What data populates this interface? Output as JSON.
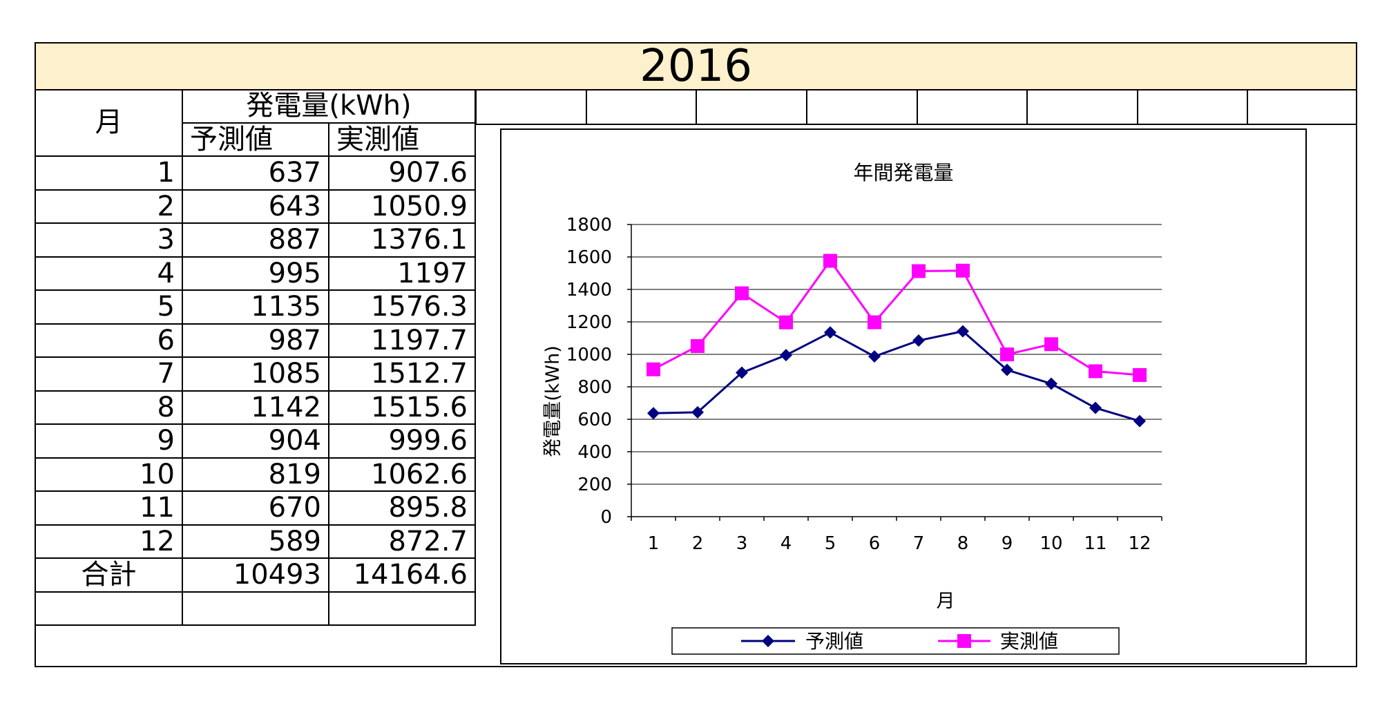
{
  "title": "2016",
  "table": {
    "month_header": "月",
    "energy_header": "発電量(kWh)",
    "predicted_header": "予測値",
    "measured_header": "実測値",
    "rows": [
      {
        "month": "1",
        "predicted": "637",
        "measured": "907.6"
      },
      {
        "month": "2",
        "predicted": "643",
        "measured": "1050.9"
      },
      {
        "month": "3",
        "predicted": "887",
        "measured": "1376.1"
      },
      {
        "month": "4",
        "predicted": "995",
        "measured": "1197"
      },
      {
        "month": "5",
        "predicted": "1135",
        "measured": "1576.3"
      },
      {
        "month": "6",
        "predicted": "987",
        "measured": "1197.7"
      },
      {
        "month": "7",
        "predicted": "1085",
        "measured": "1512.7"
      },
      {
        "month": "8",
        "predicted": "1142",
        "measured": "1515.6"
      },
      {
        "month": "9",
        "predicted": "904",
        "measured": "999.6"
      },
      {
        "month": "10",
        "predicted": "819",
        "measured": "1062.6"
      },
      {
        "month": "11",
        "predicted": "670",
        "measured": "895.8"
      },
      {
        "month": "12",
        "predicted": "589",
        "measured": "872.7"
      }
    ],
    "total_label": "合計",
    "total_predicted": "10493",
    "total_measured": "14164.6"
  },
  "chart_data": {
    "type": "line",
    "title": "年間発電量",
    "xlabel": "月",
    "ylabel": "発電量(kWh)",
    "categories": [
      "1",
      "2",
      "3",
      "4",
      "5",
      "6",
      "7",
      "8",
      "9",
      "10",
      "11",
      "12"
    ],
    "ylim": [
      0,
      1800
    ],
    "yticks": [
      0,
      200,
      400,
      600,
      800,
      1000,
      1200,
      1400,
      1600,
      1800
    ],
    "grid": true,
    "legend": "bottom",
    "series": [
      {
        "name": "予測値",
        "marker": "diamond",
        "color": "#000080",
        "values": [
          637,
          643,
          887,
          995,
          1135,
          987,
          1085,
          1142,
          904,
          819,
          670,
          589
        ]
      },
      {
        "name": "実測値",
        "marker": "square",
        "color": "#ff00ff",
        "values": [
          907.6,
          1050.9,
          1376.1,
          1197,
          1576.3,
          1197.7,
          1512.7,
          1515.6,
          999.6,
          1062.6,
          895.8,
          872.7
        ]
      }
    ]
  }
}
